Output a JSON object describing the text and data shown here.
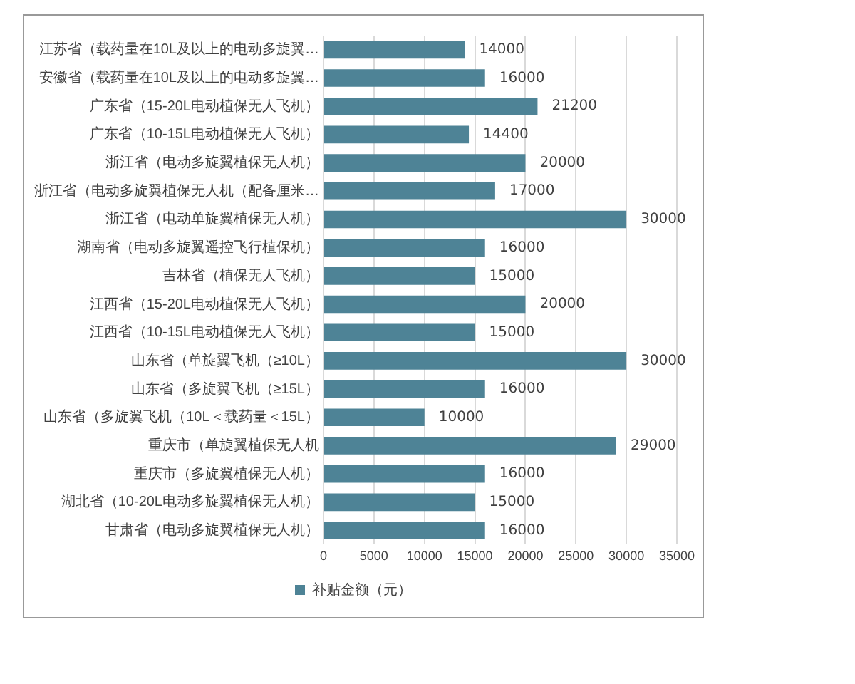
{
  "chart_data": {
    "type": "bar",
    "orientation": "horizontal",
    "categories": [
      "江苏省（载药量在10L及以上的电动多旋翼…",
      "安徽省（载药量在10L及以上的电动多旋翼…",
      "广东省（15-20L电动植保无人飞机）",
      "广东省（10-15L电动植保无人飞机）",
      "浙江省（电动多旋翼植保无人机）",
      "浙江省（电动多旋翼植保无人机（配备厘米…",
      "浙江省（电动单旋翼植保无人机）",
      "湖南省（电动多旋翼遥控飞行植保机）",
      "吉林省（植保无人飞机）",
      "江西省（15-20L电动植保无人飞机）",
      "江西省（10-15L电动植保无人飞机）",
      "山东省（单旋翼飞机（≥10L）",
      "山东省（多旋翼飞机（≥15L）",
      "山东省（多旋翼飞机（10L＜载药量＜15L）",
      "重庆市（单旋翼植保无人机",
      "重庆市（多旋翼植保无人机）",
      "湖北省（10-20L电动多旋翼植保无人机）",
      "甘肃省（电动多旋翼植保无人机）"
    ],
    "series": [
      {
        "name": "补贴金额（元）",
        "color": "#4e8396",
        "values": [
          14000,
          16000,
          21200,
          14400,
          20000,
          17000,
          30000,
          16000,
          15000,
          20000,
          15000,
          30000,
          16000,
          10000,
          29000,
          16000,
          15000,
          16000
        ]
      }
    ],
    "xlim": [
      0,
      35000
    ],
    "xticks": [
      0,
      5000,
      10000,
      15000,
      20000,
      25000,
      30000,
      35000
    ],
    "grid": "x",
    "legend": "bottom",
    "data_labels": true
  }
}
